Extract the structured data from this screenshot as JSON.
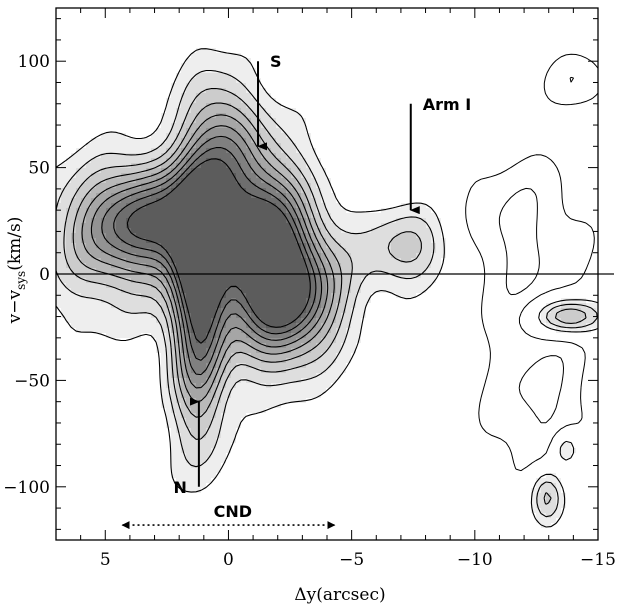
{
  "chart_data": {
    "type": "contour",
    "xlabel": "Δy(arcsec)",
    "ylabel_main": "v−v",
    "ylabel_sub": "sys",
    "ylabel_unit": "(km/s)",
    "xlim": [
      7,
      -15
    ],
    "ylim": [
      -125,
      125
    ],
    "x_ticks": [
      5,
      0,
      -5,
      -10,
      -15
    ],
    "x_tick_labels": [
      "5",
      "0",
      "−5",
      "−10",
      "−15"
    ],
    "y_ticks": [
      100,
      50,
      0,
      -50,
      -100
    ],
    "y_tick_labels": [
      "100",
      "50",
      "0",
      "−50",
      "−100"
    ],
    "zero_line": 0,
    "shade_levels": [
      "#eeeeee",
      "#dedede",
      "#cccccc",
      "#b9b9b9",
      "#a6a6a6",
      "#939393",
      "#808080",
      "#6e6e6e",
      "#5c5c5c"
    ],
    "annotations": [
      {
        "label": "S",
        "x": -1.2,
        "y": 100,
        "arrow_to_y": 60
      },
      {
        "label": "Arm I",
        "x": -7.4,
        "y": 80,
        "arrow_to_y": 30
      },
      {
        "label": "N",
        "x": 1.2,
        "y": -100,
        "arrow_to_y": -60
      },
      {
        "label": "CND",
        "x": 4.3,
        "x_end": -4.3,
        "y": -118
      }
    ],
    "emission_blobs": [
      {
        "x": 3.1,
        "y": 25,
        "sx": 2.0,
        "sy": 18,
        "peak": 8
      },
      {
        "x": 1.2,
        "y": -5,
        "sx": 0.8,
        "sy": 48,
        "peak": 9.5
      },
      {
        "x": -1.4,
        "y": 12,
        "sx": 1.3,
        "sy": 32,
        "peak": 10
      },
      {
        "x": -2.9,
        "y": -10,
        "sx": 1.4,
        "sy": 22,
        "peak": 6.5
      },
      {
        "x": 0.1,
        "y": 62,
        "sx": 0.9,
        "sy": 22,
        "peak": 4
      },
      {
        "x": -7.3,
        "y": 12,
        "sx": 1.4,
        "sy": 14,
        "peak": 3.5
      },
      {
        "x": -13.8,
        "y": -20,
        "sx": 1.0,
        "sy": 6,
        "peak": 5
      },
      {
        "x": -12.9,
        "y": -104,
        "sx": 0.5,
        "sy": 10,
        "peak": 4
      },
      {
        "x": -13.7,
        "y": -82,
        "sx": 0.4,
        "sy": 6,
        "peak": 3
      },
      {
        "x": 5.0,
        "y": 10,
        "sx": 2.0,
        "sy": 28,
        "peak": 2.4
      }
    ],
    "negative_blobs": [
      {
        "x": -11.7,
        "y": 20,
        "sx": 2.0,
        "sy": 28,
        "peak": -2.2
      },
      {
        "x": -12.6,
        "y": -60,
        "sx": 1.6,
        "sy": 32,
        "peak": -2.2
      },
      {
        "x": -14.2,
        "y": 90,
        "sx": 0.9,
        "sy": 10,
        "peak": -2.0
      }
    ]
  }
}
